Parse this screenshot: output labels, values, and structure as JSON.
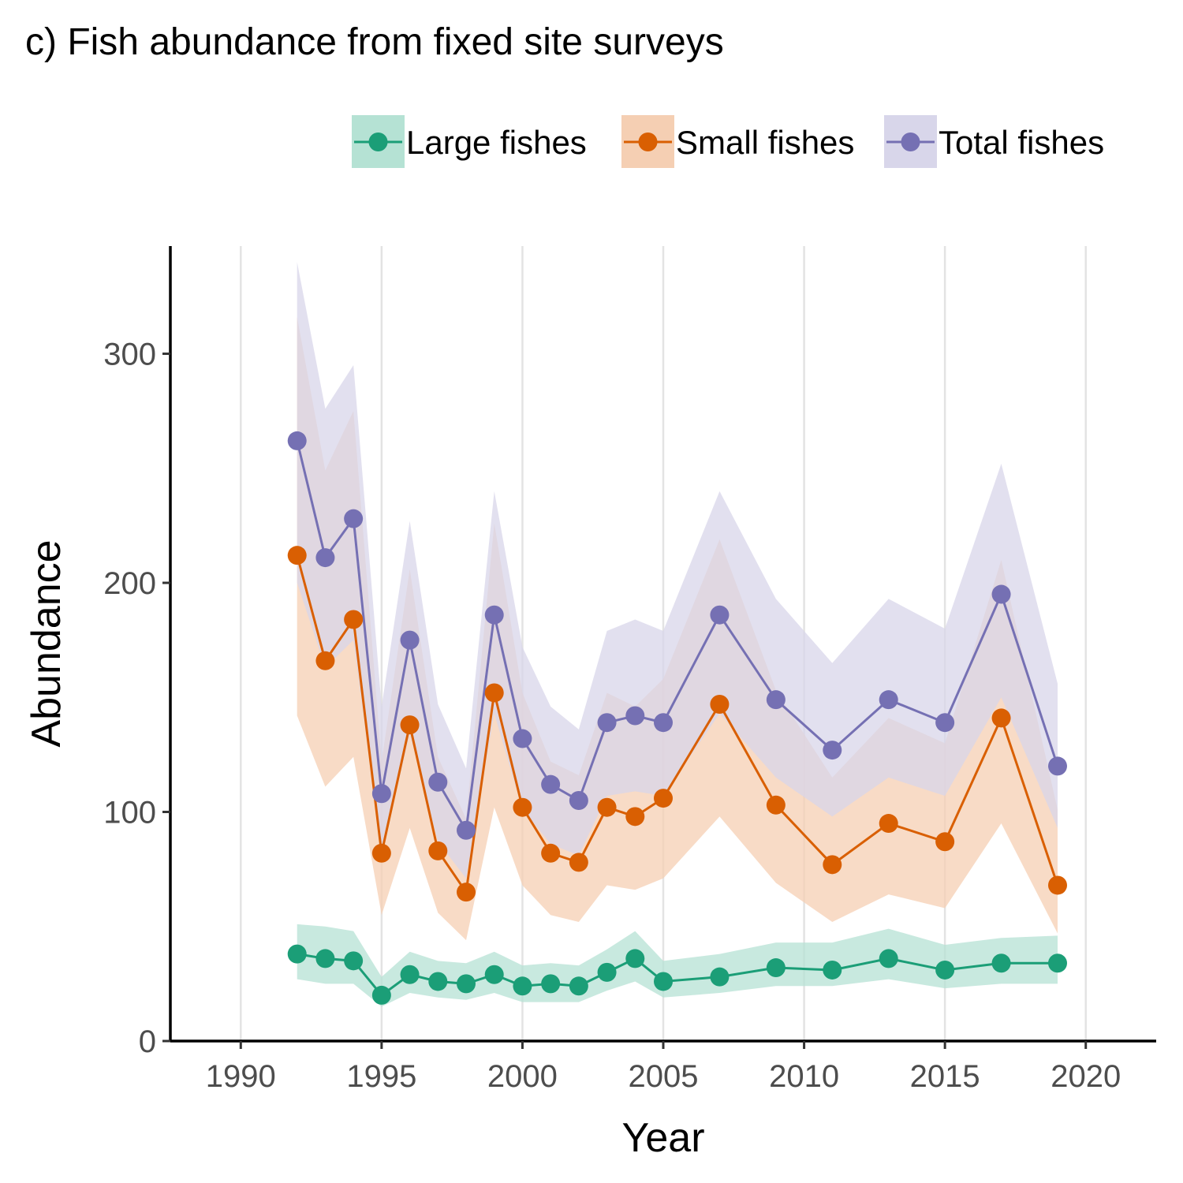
{
  "chart_data": {
    "type": "line",
    "title": "c) Fish abundance from fixed site surveys",
    "xlabel": "Year",
    "ylabel": "Abundance",
    "xlim": [
      1987.5,
      2022.5
    ],
    "ylim": [
      0,
      347
    ],
    "x_ticks": [
      1990,
      1995,
      2000,
      2005,
      2010,
      2015,
      2020
    ],
    "y_ticks": [
      0,
      100,
      200,
      300
    ],
    "grid": "vertical-major",
    "legend_position": "top-right",
    "series": [
      {
        "name": "Large fishes",
        "color": "#1b9e77",
        "ribbon_color": "#b5e2d4",
        "x": [
          1992,
          1993,
          1994,
          1995,
          1996,
          1997,
          1998,
          1999,
          2000,
          2001,
          2002,
          2003,
          2004,
          2005,
          2007,
          2009,
          2011,
          2013,
          2015,
          2017,
          2019
        ],
        "y": [
          38,
          36,
          35,
          20,
          29,
          26,
          25,
          29,
          24,
          25,
          24,
          30,
          36,
          26,
          28,
          32,
          31,
          36,
          31,
          34,
          34
        ],
        "lower": [
          27,
          25,
          25,
          15,
          21,
          19,
          18,
          21,
          17,
          17,
          17,
          22,
          26,
          19,
          21,
          24,
          24,
          27,
          23,
          25,
          25
        ],
        "upper": [
          51,
          50,
          48,
          28,
          39,
          35,
          34,
          39,
          33,
          34,
          33,
          40,
          48,
          35,
          38,
          43,
          43,
          49,
          42,
          45,
          46
        ]
      },
      {
        "name": "Small fishes",
        "color": "#d95f02",
        "ribbon_color": "#f5cfb3",
        "x": [
          1992,
          1993,
          1994,
          1995,
          1996,
          1997,
          1998,
          1999,
          2000,
          2001,
          2002,
          2003,
          2004,
          2005,
          2007,
          2009,
          2011,
          2013,
          2015,
          2017,
          2019
        ],
        "y": [
          212,
          166,
          184,
          82,
          138,
          83,
          65,
          152,
          102,
          82,
          78,
          102,
          98,
          106,
          147,
          103,
          77,
          95,
          87,
          141,
          68
        ],
        "lower": [
          142,
          111,
          124,
          55,
          93,
          56,
          44,
          102,
          68,
          55,
          52,
          68,
          66,
          71,
          98,
          69,
          52,
          64,
          58,
          95,
          47
        ],
        "upper": [
          316,
          249,
          275,
          122,
          206,
          124,
          97,
          226,
          152,
          122,
          116,
          152,
          146,
          158,
          219,
          153,
          115,
          141,
          130,
          210,
          101
        ]
      },
      {
        "name": "Total fishes",
        "color": "#7570b3",
        "ribbon_color": "#d8d6ea",
        "x": [
          1992,
          1993,
          1994,
          1995,
          1996,
          1997,
          1998,
          1999,
          2000,
          2001,
          2002,
          2003,
          2004,
          2005,
          2007,
          2009,
          2011,
          2013,
          2015,
          2017,
          2019
        ],
        "y": [
          262,
          211,
          228,
          108,
          175,
          113,
          92,
          186,
          132,
          112,
          105,
          139,
          142,
          139,
          186,
          149,
          127,
          149,
          139,
          195,
          120
        ],
        "lower": [
          200,
          163,
          175,
          82,
          134,
          87,
          71,
          143,
          101,
          86,
          81,
          107,
          109,
          107,
          143,
          115,
          98,
          115,
          107,
          150,
          93
        ],
        "upper": [
          340,
          276,
          295,
          146,
          227,
          147,
          119,
          240,
          172,
          146,
          136,
          179,
          184,
          179,
          240,
          193,
          165,
          193,
          180,
          252,
          156
        ]
      }
    ]
  }
}
